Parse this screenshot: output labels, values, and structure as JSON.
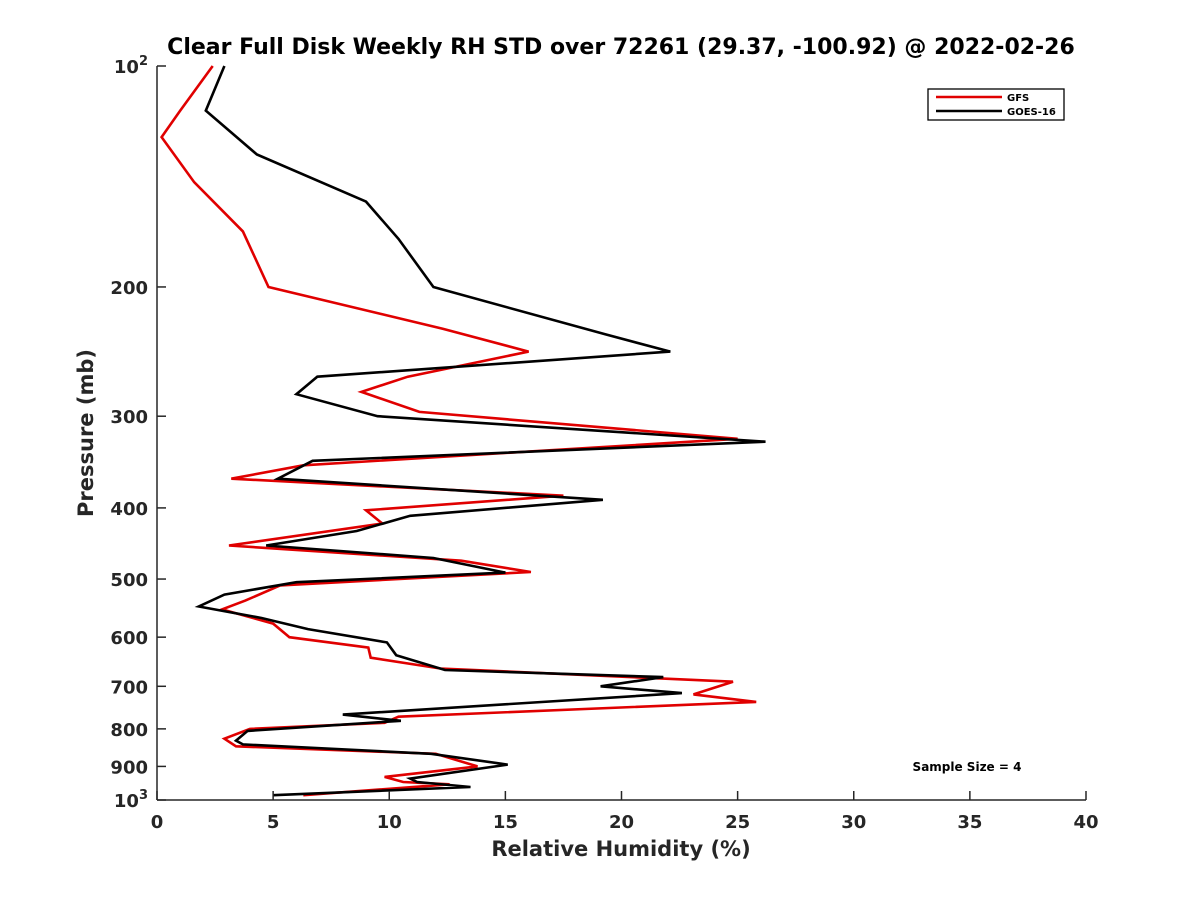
{
  "chart_data": {
    "type": "line",
    "title": "Clear Full Disk Weekly RH STD over 72261 (29.37, -100.92) @ 2022-02-26",
    "xlabel": "Relative Humidity (%)",
    "ylabel": "Pressure (mb)",
    "xlim": [
      0,
      40
    ],
    "ylim": [
      100,
      1000
    ],
    "yscale": "log",
    "yreversed": true,
    "grid": false,
    "legend_position": "top-right",
    "xticks": [
      {
        "value": 0,
        "label": "0"
      },
      {
        "value": 5,
        "label": "5"
      },
      {
        "value": 10,
        "label": "10"
      },
      {
        "value": 15,
        "label": "15"
      },
      {
        "value": 20,
        "label": "20"
      },
      {
        "value": 25,
        "label": "25"
      },
      {
        "value": 30,
        "label": "30"
      },
      {
        "value": 35,
        "label": "35"
      },
      {
        "value": 40,
        "label": "40"
      }
    ],
    "yticks": [
      {
        "value": 100,
        "base": "10",
        "exp": "2"
      },
      {
        "value": 200,
        "label": "200"
      },
      {
        "value": 300,
        "label": "300"
      },
      {
        "value": 400,
        "label": "400"
      },
      {
        "value": 500,
        "label": "500"
      },
      {
        "value": 600,
        "label": "600"
      },
      {
        "value": 700,
        "label": "700"
      },
      {
        "value": 800,
        "label": "800"
      },
      {
        "value": 900,
        "label": "900"
      },
      {
        "value": 1000,
        "base": "10",
        "exp": "3"
      }
    ],
    "annotation": "Sample Size = 4",
    "series": [
      {
        "name": "GFS",
        "color": "#e00000",
        "points": [
          [
            2.4,
            100
          ],
          [
            1.0,
            115
          ],
          [
            0.2,
            125
          ],
          [
            1.6,
            144
          ],
          [
            3.7,
            168
          ],
          [
            4.8,
            200
          ],
          [
            12.3,
            228
          ],
          [
            16.0,
            245
          ],
          [
            10.8,
            265
          ],
          [
            8.8,
            278
          ],
          [
            11.3,
            296
          ],
          [
            25.0,
            322
          ],
          [
            6.3,
            350
          ],
          [
            3.2,
            365
          ],
          [
            17.5,
            385
          ],
          [
            9.0,
            403
          ],
          [
            9.7,
            420
          ],
          [
            3.1,
            450
          ],
          [
            13.1,
            472
          ],
          [
            16.1,
            489
          ],
          [
            5.3,
            510
          ],
          [
            3.8,
            535
          ],
          [
            2.8,
            550
          ],
          [
            5.0,
            575
          ],
          [
            5.7,
            600
          ],
          [
            9.1,
            620
          ],
          [
            9.2,
            640
          ],
          [
            12.2,
            662
          ],
          [
            24.8,
            690
          ],
          [
            23.1,
            718
          ],
          [
            25.8,
            735
          ],
          [
            10.4,
            770
          ],
          [
            9.8,
            785
          ],
          [
            4.0,
            800
          ],
          [
            2.9,
            825
          ],
          [
            3.4,
            845
          ],
          [
            12.0,
            865
          ],
          [
            13.8,
            900
          ],
          [
            9.8,
            930
          ],
          [
            10.6,
            945
          ],
          [
            12.6,
            952
          ],
          [
            6.3,
            985
          ]
        ]
      },
      {
        "name": "GOES-16",
        "color": "#000000",
        "points": [
          [
            2.9,
            100
          ],
          [
            2.1,
            115
          ],
          [
            4.3,
            132
          ],
          [
            9.0,
            153
          ],
          [
            10.4,
            172
          ],
          [
            11.9,
            200
          ],
          [
            19.3,
            232
          ],
          [
            22.1,
            245
          ],
          [
            6.9,
            265
          ],
          [
            6.0,
            280
          ],
          [
            9.5,
            300
          ],
          [
            26.2,
            325
          ],
          [
            6.7,
            345
          ],
          [
            5.2,
            365
          ],
          [
            19.2,
            390
          ],
          [
            10.9,
            410
          ],
          [
            8.6,
            430
          ],
          [
            4.7,
            450
          ],
          [
            11.9,
            468
          ],
          [
            15.0,
            490
          ],
          [
            6.0,
            505
          ],
          [
            2.9,
            525
          ],
          [
            1.8,
            545
          ],
          [
            4.5,
            565
          ],
          [
            6.5,
            585
          ],
          [
            9.9,
            610
          ],
          [
            10.3,
            635
          ],
          [
            12.4,
            665
          ],
          [
            21.8,
            680
          ],
          [
            19.1,
            700
          ],
          [
            22.6,
            715
          ],
          [
            8.0,
            765
          ],
          [
            10.5,
            780
          ],
          [
            3.9,
            805
          ],
          [
            3.4,
            830
          ],
          [
            3.7,
            840
          ],
          [
            11.8,
            865
          ],
          [
            15.1,
            895
          ],
          [
            10.9,
            935
          ],
          [
            11.2,
            945
          ],
          [
            13.5,
            960
          ],
          [
            5.0,
            985
          ]
        ]
      }
    ]
  }
}
